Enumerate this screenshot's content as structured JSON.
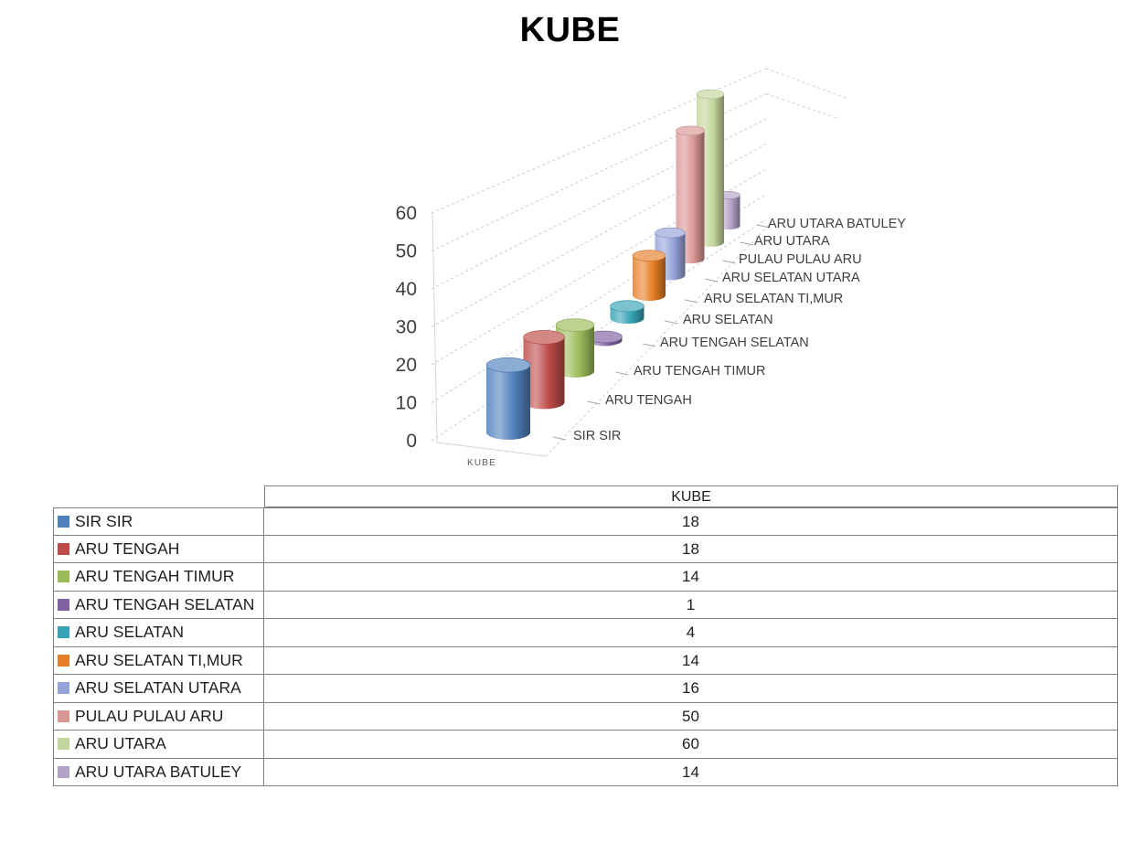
{
  "chart_data": {
    "type": "bar",
    "subtype": "3d-cylinder",
    "title": "KUBE",
    "categories": [
      "SIR SIR",
      "ARU TENGAH",
      "ARU TENGAH TIMUR",
      "ARU TENGAH SELATAN",
      "ARU SELATAN",
      "ARU SELATAN TI,MUR",
      "ARU SELATAN UTARA",
      "PULAU PULAU ARU",
      "ARU UTARA",
      "ARU UTARA BATULEY"
    ],
    "series": [
      {
        "name": "KUBE",
        "values": [
          18,
          18,
          14,
          1,
          4,
          14,
          16,
          50,
          60,
          14
        ]
      }
    ],
    "series_colors": [
      "#4F81BD",
      "#BE4B48",
      "#9BBB59",
      "#7E62A1",
      "#35A2B5",
      "#E67E28",
      "#95A3D9",
      "#D99694",
      "#C3D69B",
      "#B2A2C7"
    ],
    "value_axis": {
      "min": 0,
      "max": 60,
      "tick_interval": 10,
      "ticks": [
        0,
        10,
        20,
        30,
        40,
        50,
        60
      ]
    },
    "depth_axis_label": "KUBE",
    "gridlines": "dashed",
    "legend_position": "table-left-column"
  },
  "table": {
    "header": "KUBE",
    "rows": [
      {
        "label": "SIR SIR",
        "value": "18"
      },
      {
        "label": "ARU TENGAH",
        "value": "18"
      },
      {
        "label": "ARU TENGAH TIMUR",
        "value": "14"
      },
      {
        "label": "ARU TENGAH SELATAN",
        "value": "1"
      },
      {
        "label": "ARU SELATAN",
        "value": "4"
      },
      {
        "label": "ARU SELATAN TI,MUR",
        "value": "14"
      },
      {
        "label": "ARU SELATAN UTARA",
        "value": "16"
      },
      {
        "label": "PULAU PULAU ARU",
        "value": "50"
      },
      {
        "label": "ARU UTARA",
        "value": "60"
      },
      {
        "label": "ARU UTARA BATULEY",
        "value": "14"
      }
    ]
  }
}
